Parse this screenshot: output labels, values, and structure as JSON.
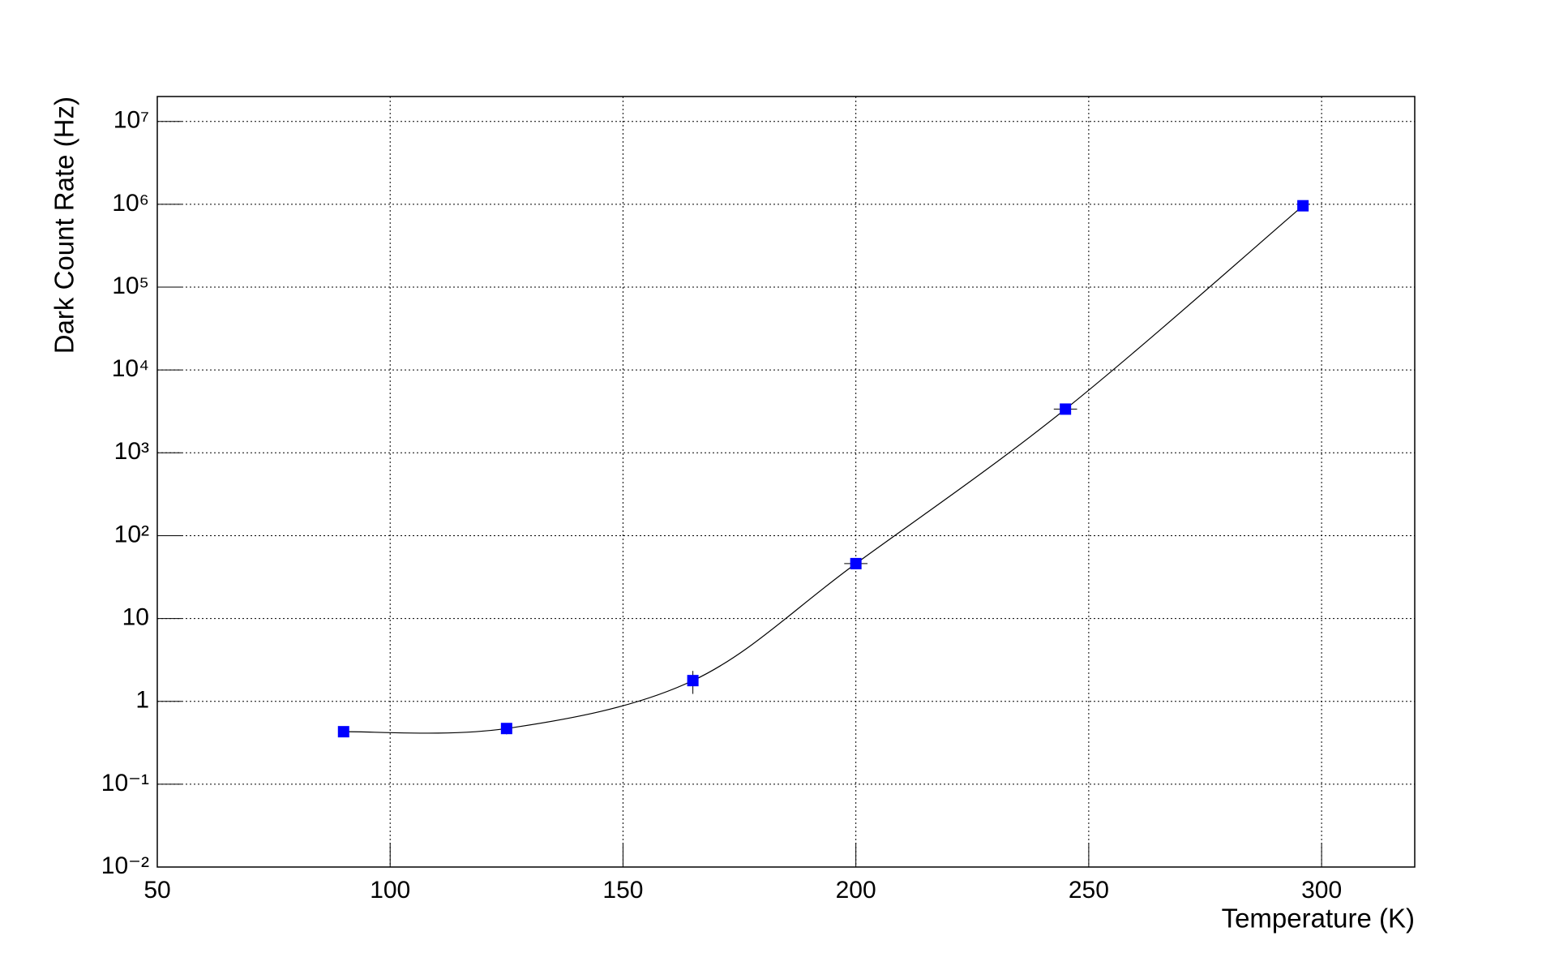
{
  "chart_data": {
    "type": "scatter",
    "x_label": "Temperature (K)",
    "y_label": "Dark Count Rate (Hz)",
    "log_y": true,
    "grid": true,
    "fit_line": true,
    "series": [
      {
        "color": "#0000ff",
        "x": [
          90,
          125,
          165,
          200,
          245,
          296
        ],
        "values": [
          0.43,
          0.47,
          1.78,
          46,
          3370,
          960000
        ],
        "xerr": [
          0,
          0,
          0,
          2.5,
          2.5,
          0
        ],
        "yerr": [
          0,
          0.07,
          0.55,
          0,
          0,
          0
        ]
      }
    ],
    "xlim": [
      50,
      320
    ],
    "xticks": [
      50,
      100,
      150,
      200,
      250,
      300
    ],
    "ylim": [
      0.01,
      20000000
    ],
    "yticks": [
      {
        "value": 0.01,
        "label": "10⁻²"
      },
      {
        "value": 0.1,
        "label": "10⁻¹"
      },
      1,
      10,
      {
        "value": 100,
        "label": "10²"
      },
      {
        "value": 1000,
        "label": "10³"
      },
      {
        "value": 10000,
        "label": "10⁴"
      },
      {
        "value": 100000,
        "label": "10⁵"
      },
      {
        "value": 1000000,
        "label": "10⁶"
      },
      {
        "value": 10000000,
        "label": "10⁷"
      }
    ]
  }
}
